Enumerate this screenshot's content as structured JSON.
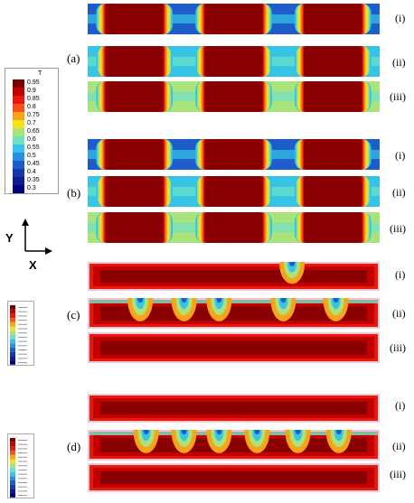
{
  "legend": {
    "title": "T",
    "levels": [
      "0.95",
      "0.9",
      "0.85",
      "0.8",
      "0.75",
      "0.7",
      "0.65",
      "0.6",
      "0.55",
      "0.5",
      "0.45",
      "0.4",
      "0.35",
      "0.3"
    ],
    "colors": [
      "#7a0000",
      "#c30000",
      "#e41a0b",
      "#f4521a",
      "#f9a31b",
      "#f6e21a",
      "#a8e37c",
      "#6fe2c4",
      "#36c4e6",
      "#2a8fe0",
      "#1e5cc9",
      "#1637a8",
      "#0d1c8e",
      "#00007d"
    ]
  },
  "axes": {
    "y_label": "Y",
    "x_label": "X"
  },
  "groups": [
    {
      "label": "(a)",
      "rows": [
        "(i)",
        "(ii)",
        "(iii)"
      ]
    },
    {
      "label": "(b)",
      "rows": [
        "(i)",
        "(ii)",
        "(iii)"
      ]
    },
    {
      "label": "(c)",
      "rows": [
        "(i)",
        "(ii)",
        "(iii)"
      ]
    },
    {
      "label": "(d)",
      "rows": [
        "(i)",
        "(ii)",
        "(iii)"
      ]
    }
  ]
}
